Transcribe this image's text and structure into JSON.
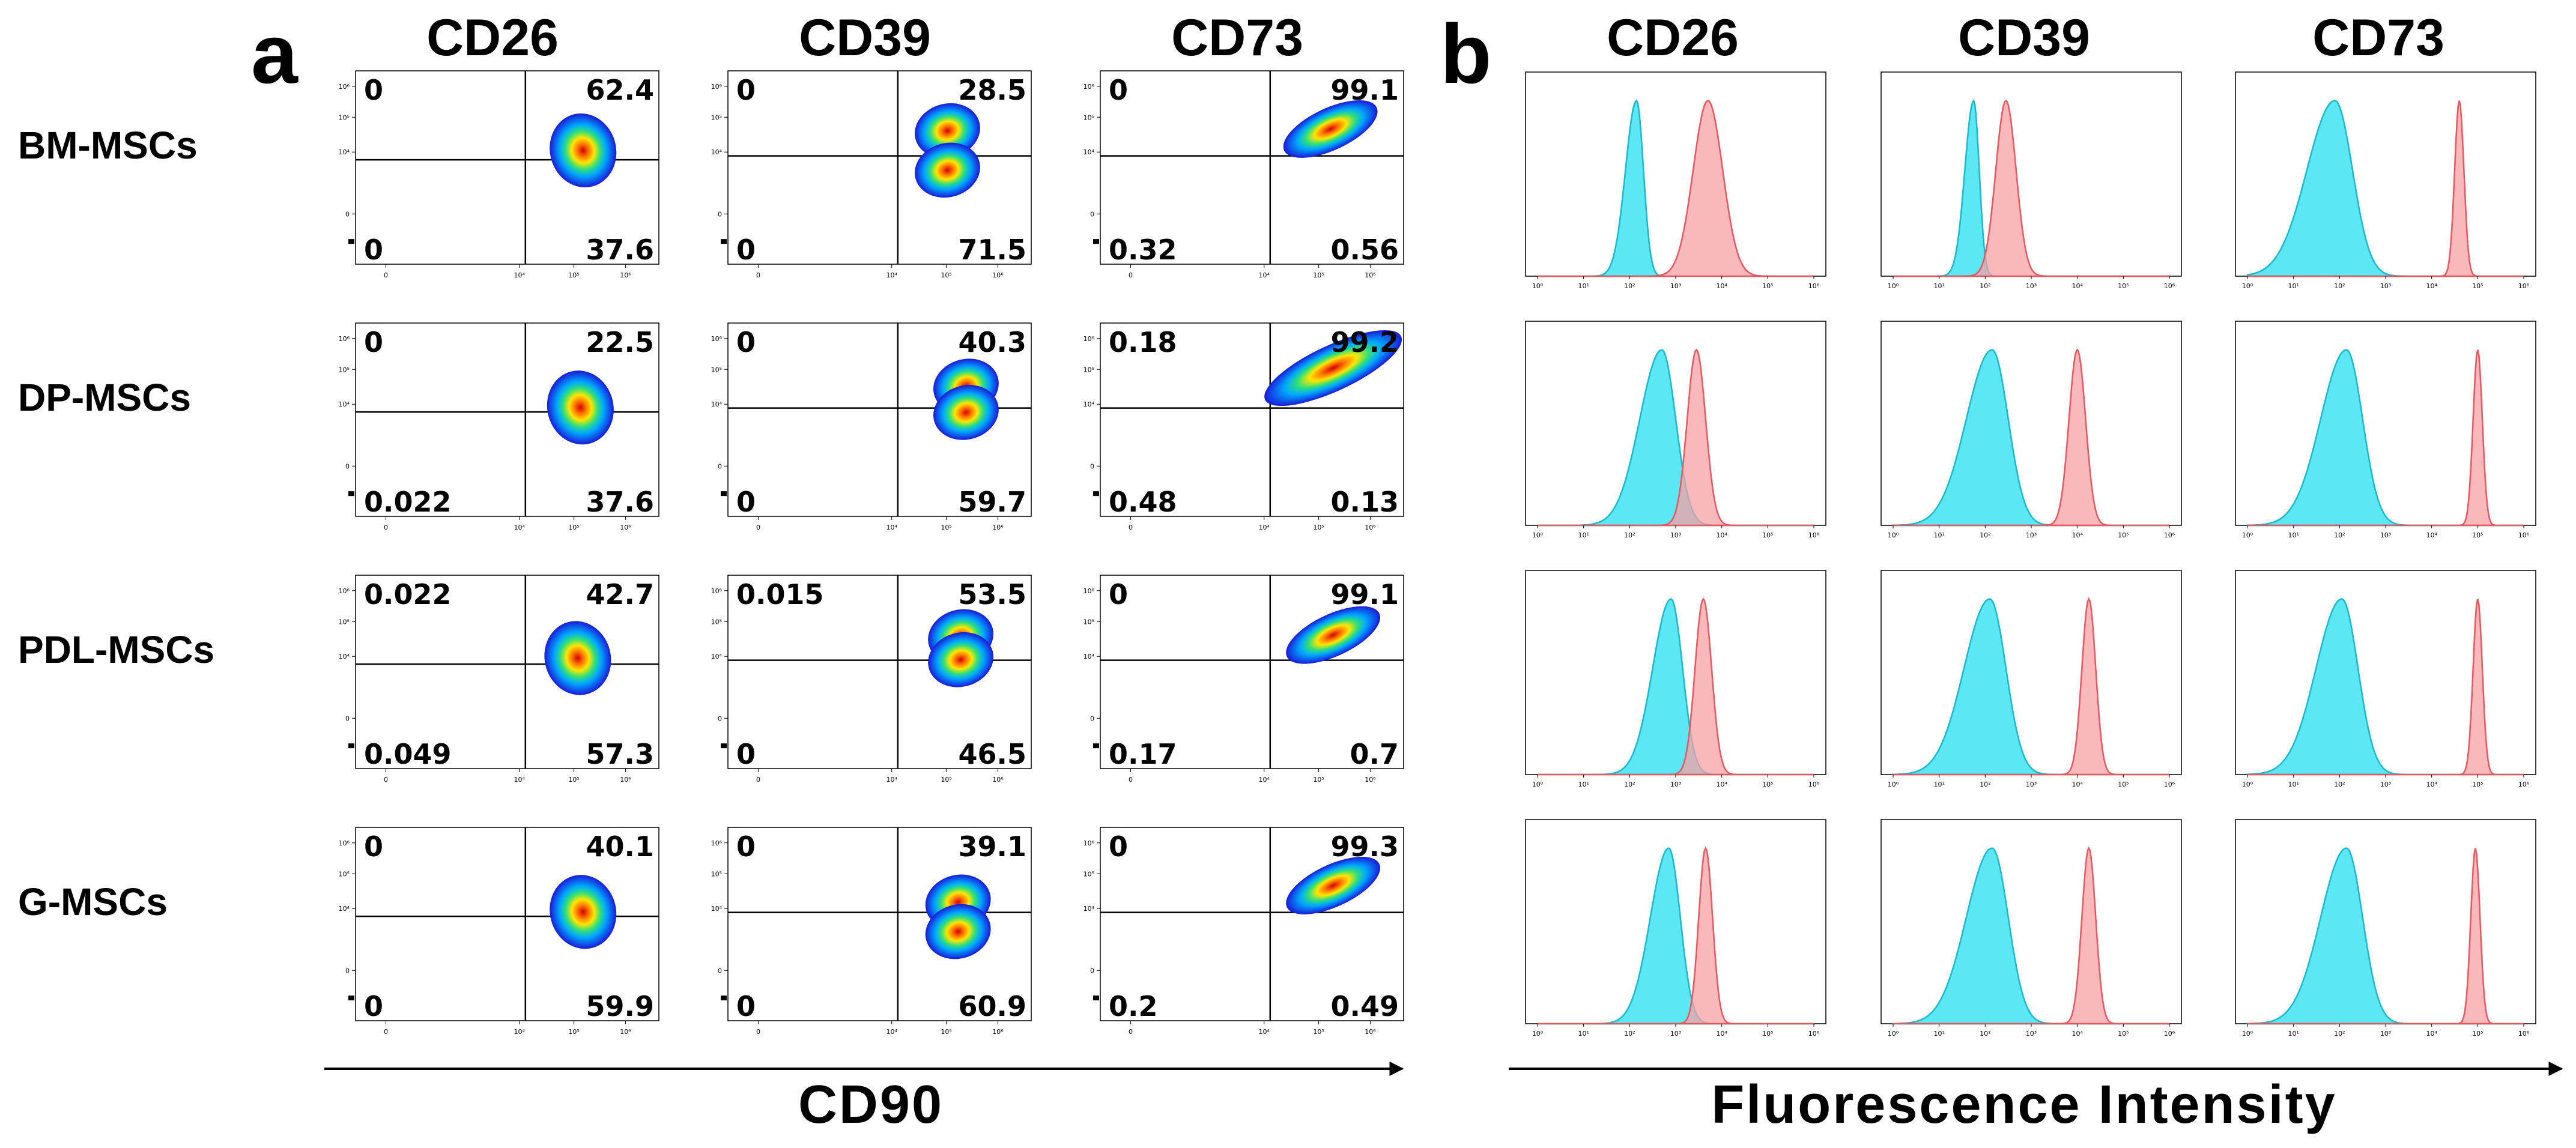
{
  "panel_a": {
    "letter": "a",
    "x_axis_label": "CD90",
    "columns": [
      "CD26",
      "CD39",
      "CD73"
    ],
    "rows": [
      "BM-MSCs",
      "DP-MSCs",
      "PDL-MSCs",
      "G-MSCs"
    ],
    "x_ticks": [
      "0",
      "10⁴",
      "10⁵",
      "10⁶"
    ],
    "y_ticks": [
      "10⁶",
      "10⁵",
      "10⁴",
      "0"
    ]
  },
  "panel_b": {
    "letter": "b",
    "x_axis_label": "Fluorescence Intensity",
    "columns": [
      "CD26",
      "CD39",
      "CD73"
    ],
    "x_ticks": [
      "10⁰",
      "10¹",
      "10²",
      "10³",
      "10⁴",
      "10⁵",
      "10⁶"
    ],
    "colors": {
      "control": "#3ee3f2",
      "stained": "#f7a1a6",
      "control_line": "#19b8cc",
      "stained_line": "#e8565e"
    }
  },
  "chart_data": [
    {
      "type": "scatter",
      "subtype": "flow-cytometry-density-plots",
      "panel": "a",
      "x_axis": "CD90",
      "columns": [
        "CD26",
        "CD39",
        "CD73"
      ],
      "rows": [
        "BM-MSCs",
        "DP-MSCs",
        "PDL-MSCs",
        "G-MSCs"
      ],
      "quadrant_order": [
        "top-left",
        "top-right",
        "bottom-left",
        "bottom-right"
      ],
      "quadrants": [
        [
          [
            "0",
            "62.4",
            "0",
            "37.6"
          ],
          [
            "0",
            "28.5",
            "0",
            "71.5"
          ],
          [
            "0",
            "99.1",
            "0.32",
            "0.56"
          ]
        ],
        [
          [
            "0",
            "22.5",
            "0.022",
            "37.6"
          ],
          [
            "0",
            "40.3",
            "0",
            "59.7"
          ],
          [
            "0.18",
            "99.2",
            "0.48",
            "0.13"
          ]
        ],
        [
          [
            "0.022",
            "42.7",
            "0.049",
            "57.3"
          ],
          [
            "0.015",
            "53.5",
            "0",
            "46.5"
          ],
          [
            "0",
            "99.1",
            "0.17",
            "0.7"
          ]
        ],
        [
          [
            "0",
            "40.1",
            "0",
            "59.9"
          ],
          [
            "0",
            "39.1",
            "0",
            "60.9"
          ],
          [
            "0",
            "99.3",
            "0.2",
            "0.49"
          ]
        ]
      ],
      "populations": [
        [
          [
            {
              "x": 5.2,
              "y": 4.05
            }
          ],
          [
            {
              "x": 5.05,
              "y": 4.65
            },
            {
              "x": 5.05,
              "y": 3.45
            }
          ],
          [
            {
              "x": 5.25,
              "y": 4.7
            }
          ]
        ],
        [
          [
            {
              "x": 5.15,
              "y": 3.9
            }
          ],
          [
            {
              "x": 5.4,
              "y": 4.55
            },
            {
              "x": 5.4,
              "y": 3.75
            }
          ],
          [
            {
              "x": 5.3,
              "y": 5.1
            }
          ]
        ],
        [
          [
            {
              "x": 5.1,
              "y": 3.95
            }
          ],
          [
            {
              "x": 5.3,
              "y": 4.6
            },
            {
              "x": 5.3,
              "y": 3.9
            }
          ],
          [
            {
              "x": 5.3,
              "y": 4.65
            }
          ]
        ],
        [
          [
            {
              "x": 5.2,
              "y": 3.9
            }
          ],
          [
            {
              "x": 5.25,
              "y": 4.2
            },
            {
              "x": 5.25,
              "y": 3.3
            }
          ],
          [
            {
              "x": 5.3,
              "y": 4.7
            }
          ]
        ]
      ]
    },
    {
      "type": "area",
      "subtype": "histogram-overlay",
      "panel": "b",
      "xlabel": "Fluorescence Intensity",
      "xlim": [
        0,
        6
      ],
      "x_scale": "log10",
      "columns": [
        "CD26",
        "CD39",
        "CD73"
      ],
      "rows": [
        "BM-MSCs",
        "DP-MSCs",
        "PDL-MSCs",
        "G-MSCs"
      ],
      "peaks_log10": [
        [
          {
            "control": {
              "center": 2.15,
              "width": 0.15
            },
            "stained": {
              "center": 3.7,
              "width": 0.32
            }
          },
          {
            "control": {
              "center": 1.75,
              "width": 0.12
            },
            "stained": {
              "center": 2.45,
              "width": 0.22
            }
          },
          {
            "control": {
              "center": 1.9,
              "width": 0.38
            },
            "stained": {
              "center": 4.6,
              "width": 0.1
            }
          }
        ],
        [
          {
            "control": {
              "center": 2.7,
              "width": 0.3
            },
            "stained": {
              "center": 3.45,
              "width": 0.2
            }
          },
          {
            "control": {
              "center": 2.15,
              "width": 0.35
            },
            "stained": {
              "center": 4.0,
              "width": 0.18
            }
          },
          {
            "control": {
              "center": 2.15,
              "width": 0.35
            },
            "stained": {
              "center": 5.0,
              "width": 0.1
            }
          }
        ],
        [
          {
            "control": {
              "center": 2.9,
              "width": 0.25
            },
            "stained": {
              "center": 3.6,
              "width": 0.18
            }
          },
          {
            "control": {
              "center": 2.1,
              "width": 0.35
            },
            "stained": {
              "center": 4.25,
              "width": 0.15
            }
          },
          {
            "control": {
              "center": 2.05,
              "width": 0.35
            },
            "stained": {
              "center": 5.0,
              "width": 0.1
            }
          }
        ],
        [
          {
            "control": {
              "center": 2.85,
              "width": 0.25
            },
            "stained": {
              "center": 3.65,
              "width": 0.15
            }
          },
          {
            "control": {
              "center": 2.15,
              "width": 0.35
            },
            "stained": {
              "center": 4.25,
              "width": 0.15
            }
          },
          {
            "control": {
              "center": 2.15,
              "width": 0.35
            },
            "stained": {
              "center": 4.95,
              "width": 0.1
            }
          }
        ]
      ]
    }
  ]
}
